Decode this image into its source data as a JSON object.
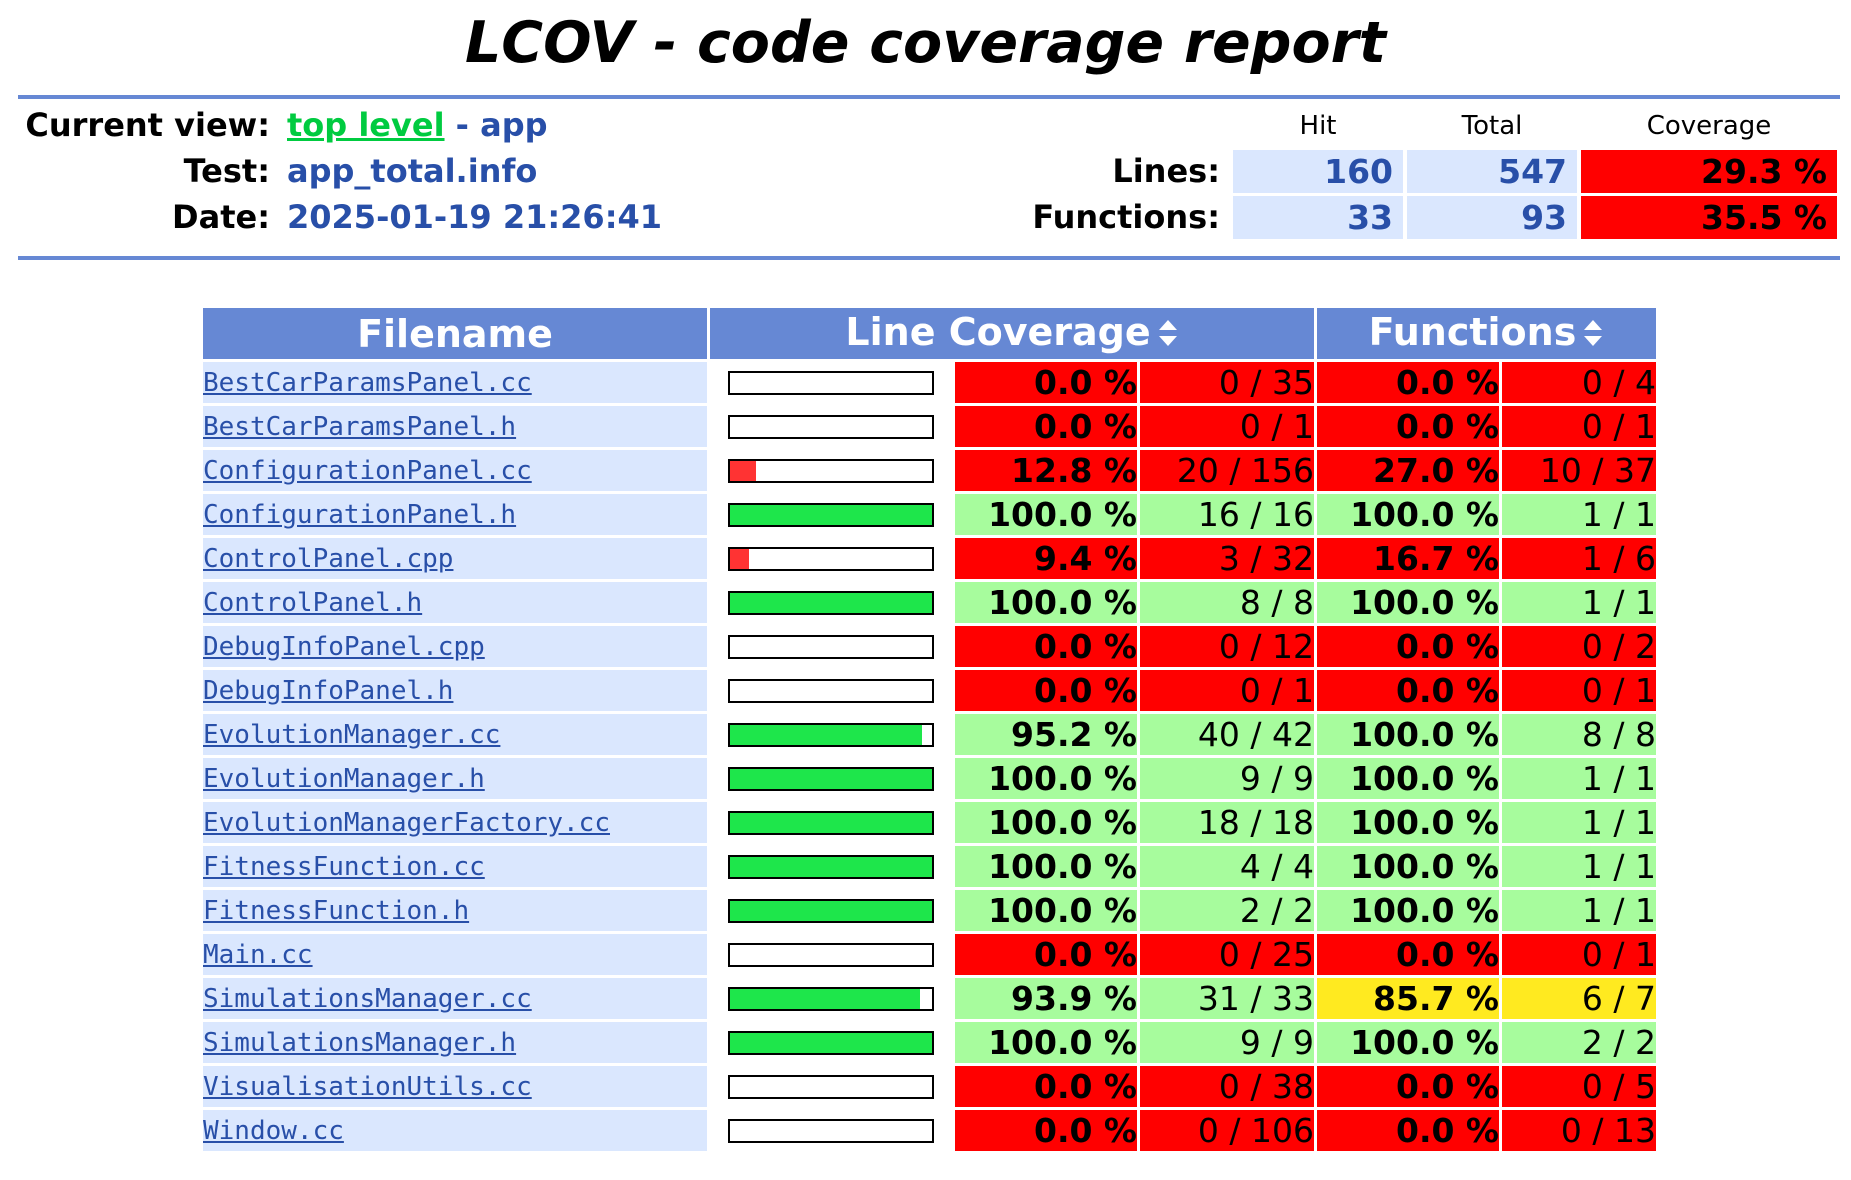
{
  "title": "LCOV - code coverage report",
  "info": {
    "current_view_label": "Current view:",
    "top_level_link": "top level",
    "current_view_rest": " - app",
    "test_label": "Test:",
    "test_value": "app_total.info",
    "date_label": "Date:",
    "date_value": "2025-01-19 21:26:41"
  },
  "summary": {
    "hit_header": "Hit",
    "total_header": "Total",
    "coverage_header": "Coverage",
    "lines_label": "Lines:",
    "lines_hit": "160",
    "lines_total": "547",
    "lines_coverage": "29.3 %",
    "functions_label": "Functions:",
    "functions_hit": "33",
    "functions_total": "93",
    "functions_coverage": "35.5 %"
  },
  "table": {
    "headers": {
      "filename": "Filename",
      "line_coverage": "Line Coverage",
      "functions": "Functions"
    },
    "rows": [
      {
        "file": "BestCarParamsPanel.cc",
        "line_frac": 0.0,
        "line_pct": "0.0 %",
        "line_cnt": "0 / 35",
        "line_level": "lo",
        "fn_pct": "0.0 %",
        "fn_cnt": "0 / 4",
        "fn_level": "lo"
      },
      {
        "file": "BestCarParamsPanel.h",
        "line_frac": 0.0,
        "line_pct": "0.0 %",
        "line_cnt": "0 / 1",
        "line_level": "lo",
        "fn_pct": "0.0 %",
        "fn_cnt": "0 / 1",
        "fn_level": "lo"
      },
      {
        "file": "ConfigurationPanel.cc",
        "line_frac": 0.128,
        "line_pct": "12.8 %",
        "line_cnt": "20 / 156",
        "line_level": "lo",
        "fn_pct": "27.0 %",
        "fn_cnt": "10 / 37",
        "fn_level": "lo"
      },
      {
        "file": "ConfigurationPanel.h",
        "line_frac": 1.0,
        "line_pct": "100.0 %",
        "line_cnt": "16 / 16",
        "line_level": "hi",
        "fn_pct": "100.0 %",
        "fn_cnt": "1 / 1",
        "fn_level": "hi"
      },
      {
        "file": "ControlPanel.cpp",
        "line_frac": 0.094,
        "line_pct": "9.4 %",
        "line_cnt": "3 / 32",
        "line_level": "lo",
        "fn_pct": "16.7 %",
        "fn_cnt": "1 / 6",
        "fn_level": "lo"
      },
      {
        "file": "ControlPanel.h",
        "line_frac": 1.0,
        "line_pct": "100.0 %",
        "line_cnt": "8 / 8",
        "line_level": "hi",
        "fn_pct": "100.0 %",
        "fn_cnt": "1 / 1",
        "fn_level": "hi"
      },
      {
        "file": "DebugInfoPanel.cpp",
        "line_frac": 0.0,
        "line_pct": "0.0 %",
        "line_cnt": "0 / 12",
        "line_level": "lo",
        "fn_pct": "0.0 %",
        "fn_cnt": "0 / 2",
        "fn_level": "lo"
      },
      {
        "file": "DebugInfoPanel.h",
        "line_frac": 0.0,
        "line_pct": "0.0 %",
        "line_cnt": "0 / 1",
        "line_level": "lo",
        "fn_pct": "0.0 %",
        "fn_cnt": "0 / 1",
        "fn_level": "lo"
      },
      {
        "file": "EvolutionManager.cc",
        "line_frac": 0.952,
        "line_pct": "95.2 %",
        "line_cnt": "40 / 42",
        "line_level": "hi",
        "fn_pct": "100.0 %",
        "fn_cnt": "8 / 8",
        "fn_level": "hi"
      },
      {
        "file": "EvolutionManager.h",
        "line_frac": 1.0,
        "line_pct": "100.0 %",
        "line_cnt": "9 / 9",
        "line_level": "hi",
        "fn_pct": "100.0 %",
        "fn_cnt": "1 / 1",
        "fn_level": "hi"
      },
      {
        "file": "EvolutionManagerFactory.cc",
        "line_frac": 1.0,
        "line_pct": "100.0 %",
        "line_cnt": "18 / 18",
        "line_level": "hi",
        "fn_pct": "100.0 %",
        "fn_cnt": "1 / 1",
        "fn_level": "hi"
      },
      {
        "file": "FitnessFunction.cc",
        "line_frac": 1.0,
        "line_pct": "100.0 %",
        "line_cnt": "4 / 4",
        "line_level": "hi",
        "fn_pct": "100.0 %",
        "fn_cnt": "1 / 1",
        "fn_level": "hi"
      },
      {
        "file": "FitnessFunction.h",
        "line_frac": 1.0,
        "line_pct": "100.0 %",
        "line_cnt": "2 / 2",
        "line_level": "hi",
        "fn_pct": "100.0 %",
        "fn_cnt": "1 / 1",
        "fn_level": "hi"
      },
      {
        "file": "Main.cc",
        "line_frac": 0.0,
        "line_pct": "0.0 %",
        "line_cnt": "0 / 25",
        "line_level": "lo",
        "fn_pct": "0.0 %",
        "fn_cnt": "0 / 1",
        "fn_level": "lo"
      },
      {
        "file": "SimulationsManager.cc",
        "line_frac": 0.939,
        "line_pct": "93.9 %",
        "line_cnt": "31 / 33",
        "line_level": "hi",
        "fn_pct": "85.7 %",
        "fn_cnt": "6 / 7",
        "fn_level": "med"
      },
      {
        "file": "SimulationsManager.h",
        "line_frac": 1.0,
        "line_pct": "100.0 %",
        "line_cnt": "9 / 9",
        "line_level": "hi",
        "fn_pct": "100.0 %",
        "fn_cnt": "2 / 2",
        "fn_level": "hi"
      },
      {
        "file": "VisualisationUtils.cc",
        "line_frac": 0.0,
        "line_pct": "0.0 %",
        "line_cnt": "0 / 38",
        "line_level": "lo",
        "fn_pct": "0.0 %",
        "fn_cnt": "0 / 5",
        "fn_level": "lo"
      },
      {
        "file": "Window.cc",
        "line_frac": 0.0,
        "line_pct": "0.0 %",
        "line_cnt": "0 / 106",
        "line_level": "lo",
        "fn_pct": "0.0 %",
        "fn_cnt": "0 / 13",
        "fn_level": "lo"
      }
    ]
  },
  "colors": {
    "header_blue": "#6688d4",
    "cell_blue": "#dae7fe",
    "link_blue": "#284fa8",
    "top_level_green": "#00cb40",
    "coverage_low": "#ff0000",
    "coverage_high": "#a7fc9d",
    "coverage_medium": "#ffea20",
    "bar_fill_high": "#1ee64b",
    "bar_fill_low": "#ff3333"
  },
  "icons": {
    "sort": "sort-updown-icon"
  }
}
